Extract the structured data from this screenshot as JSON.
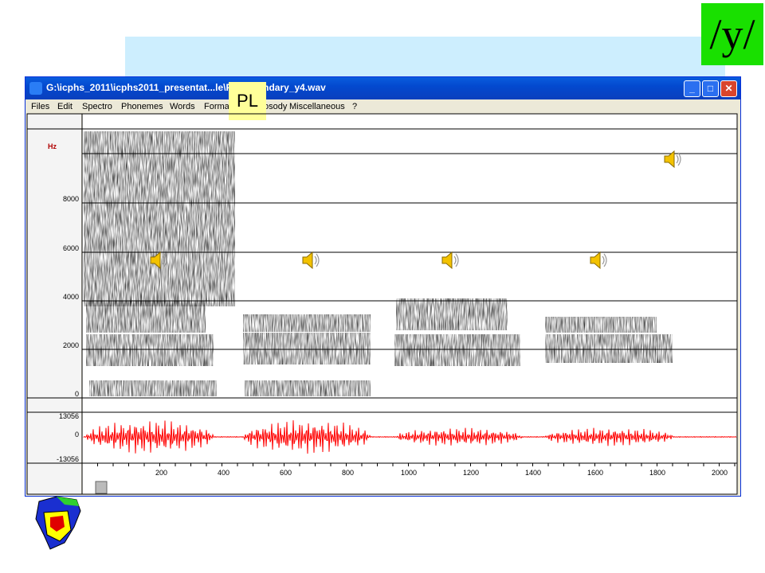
{
  "phoneme": "/y/",
  "overlay_label": "PL",
  "window": {
    "title": "G:\\icphs_2011\\icphs2011_presentat...le\\PL-secondary_y4.wav",
    "minimize": "_",
    "maximize": "□",
    "close": "✕"
  },
  "menu": [
    "Files",
    "Edit",
    "Spectro",
    "Phonemes",
    "Words",
    "Formants",
    "Prosody",
    "Miscellaneous",
    "?"
  ],
  "spectrogram": {
    "unit_label": "Hz",
    "ticks": [
      "8000",
      "6000",
      "4000",
      "2000",
      "0"
    ]
  },
  "waveform": {
    "ticks": [
      "13056",
      "0",
      "-13056"
    ],
    "color": "#ff0000"
  },
  "time_axis": {
    "ticks": [
      "200",
      "400",
      "600",
      "800",
      "1000",
      "1200",
      "1400",
      "1600",
      "1800",
      "2000"
    ]
  },
  "icons": {
    "speaker": "speaker-icon",
    "logo": "app-logo"
  }
}
